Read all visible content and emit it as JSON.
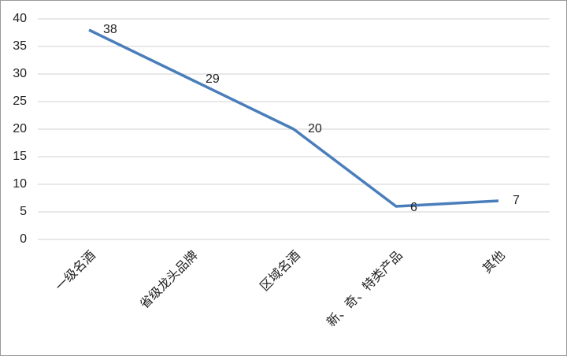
{
  "chart_data": {
    "type": "line",
    "categories": [
      "一级名酒",
      "省级龙头品牌",
      "区域名酒",
      "新、奇、特类产品",
      "其他"
    ],
    "series": [
      {
        "color": "#4a7ebb",
        "values": [
          38,
          29,
          20,
          6,
          7
        ]
      }
    ],
    "ylim": [
      0,
      40
    ],
    "yticks": [
      0,
      5,
      10,
      15,
      20,
      25,
      30,
      35,
      40
    ],
    "grid": true
  }
}
